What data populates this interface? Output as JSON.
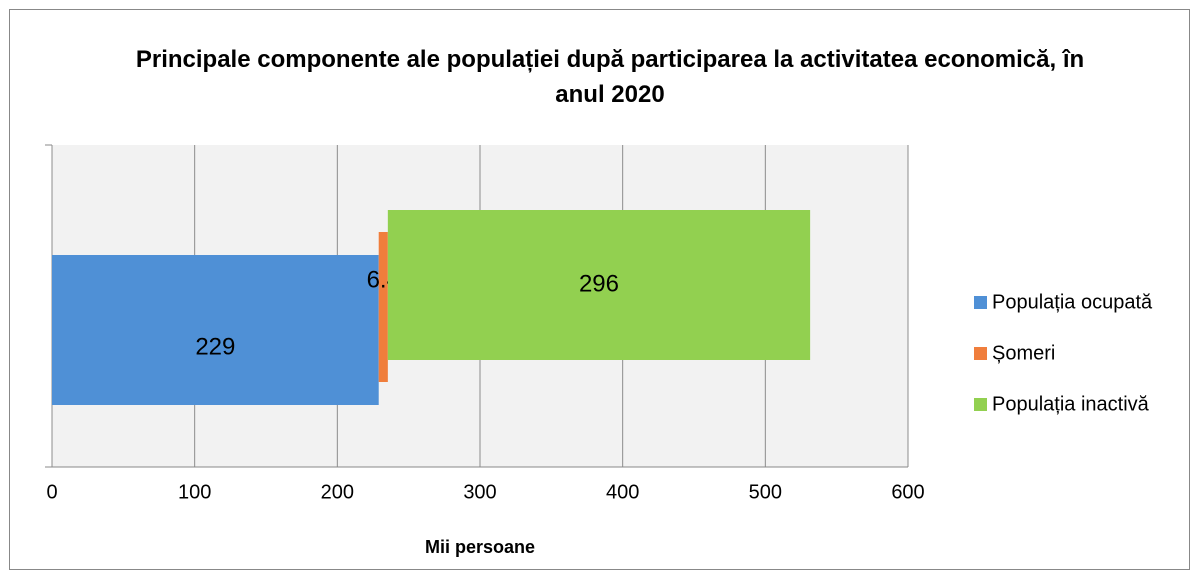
{
  "chart_data": {
    "type": "stacked-bar-horizontal",
    "title": "Principale componente ale populației după participarea la activitatea economică, în anul 2020",
    "x_label": "Mii persoane",
    "categories": [
      null
    ],
    "series": [
      {
        "name": "Populația ocupată",
        "color": "#4f90d6",
        "values": [
          229
        ]
      },
      {
        "name": "Șomeri",
        "color": "#f07e3c",
        "values": [
          6.4
        ]
      },
      {
        "name": "Populația inactivă",
        "color": "#92d050",
        "values": [
          296
        ]
      }
    ],
    "xlim": [
      0,
      600
    ],
    "xticks": [
      0,
      100,
      200,
      300,
      400,
      500,
      600
    ],
    "grid": true,
    "legend": "right"
  }
}
